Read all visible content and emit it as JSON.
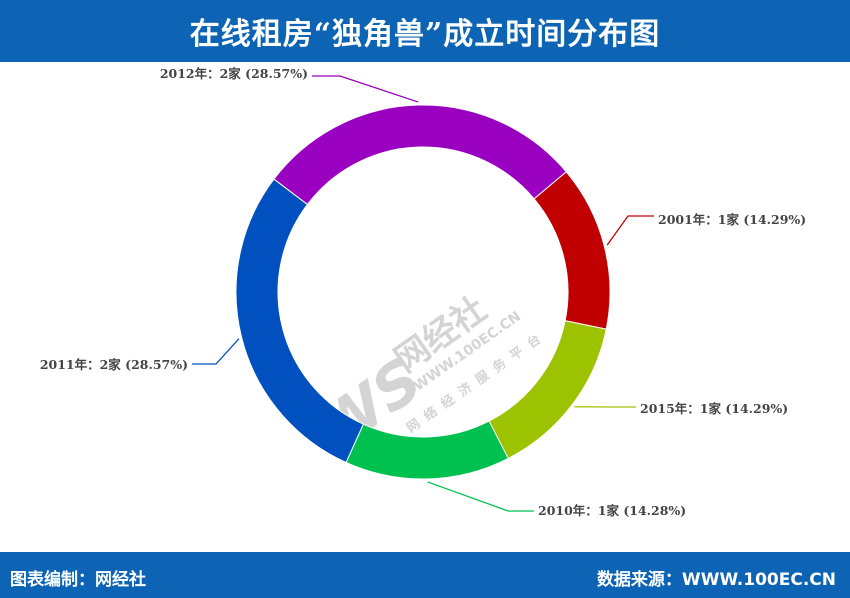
{
  "header": {
    "title": "在线租房“独角兽”成立时间分布图"
  },
  "footer": {
    "credit": "图表编制：网经社",
    "source": "数据来源：WWW.100EC.CN"
  },
  "watermark": {
    "brand": "网经社",
    "url": "WWW.100EC.CN",
    "tagline": "网络经济服务平台"
  },
  "chart_data": {
    "type": "pie",
    "variant": "donut",
    "title": "在线租房“独角兽”成立时间分布图",
    "slices": [
      {
        "label": "2001年：1家 (14.29%)",
        "year": "2001",
        "count": 1,
        "percent": 14.29,
        "color": "#c00000"
      },
      {
        "label": "2015年：1家 (14.29%)",
        "year": "2015",
        "count": 1,
        "percent": 14.29,
        "color": "#9dc300"
      },
      {
        "label": "2010年：1家 (14.28%)",
        "year": "2010",
        "count": 1,
        "percent": 14.28,
        "color": "#00c050"
      },
      {
        "label": "2011年：2家 (28.57%)",
        "year": "2011",
        "count": 2,
        "percent": 28.57,
        "color": "#0050c0"
      },
      {
        "label": "2012年：2家 (28.57%)",
        "year": "2012",
        "count": 2,
        "percent": 28.57,
        "color": "#9900c0"
      }
    ],
    "legend": "none"
  }
}
